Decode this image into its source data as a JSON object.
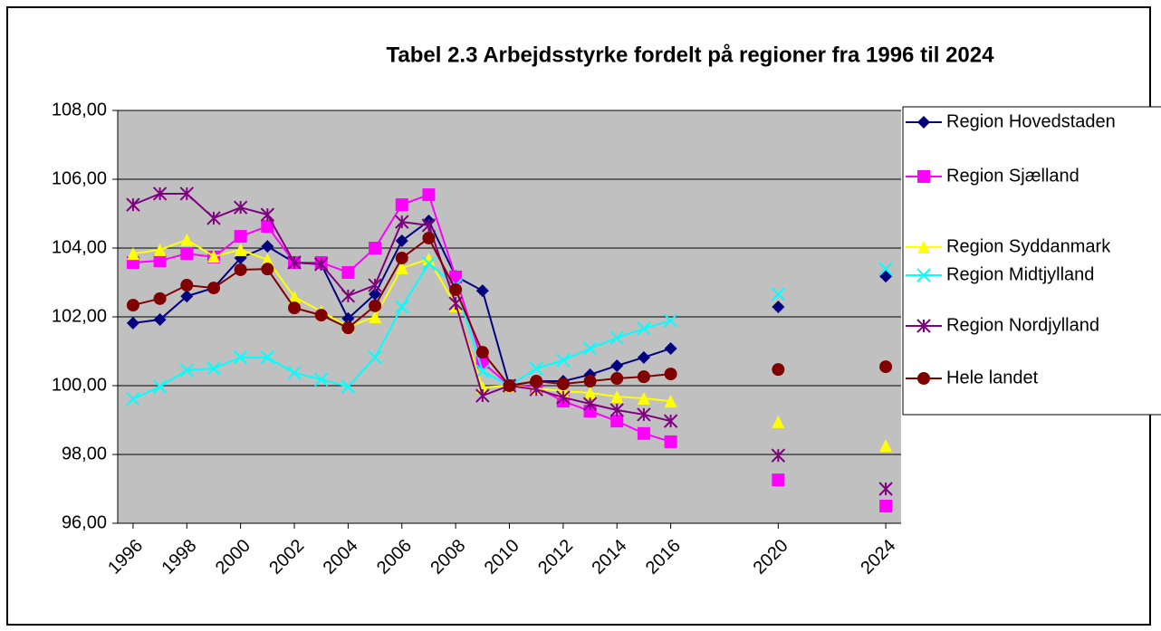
{
  "chart_data": {
    "type": "line",
    "title": "Tabel 2.3 Arbejdsstyrke fordelt på regioner fra 1996 til 2024",
    "x": [
      1996,
      1997,
      1998,
      1999,
      2000,
      2001,
      2002,
      2003,
      2004,
      2005,
      2006,
      2007,
      2008,
      2009,
      2010,
      2011,
      2012,
      2013,
      2014,
      2015,
      2016,
      2020,
      2024
    ],
    "xlim": [
      1995.43,
      2024.57
    ],
    "xticks": [
      1996,
      1998,
      2000,
      2002,
      2004,
      2006,
      2008,
      2010,
      2012,
      2014,
      2016,
      2020,
      2024
    ],
    "ylim": [
      96,
      108
    ],
    "yticks": [
      {
        "value": 96,
        "label": "96,00"
      },
      {
        "value": 98,
        "label": "98,00"
      },
      {
        "value": 100,
        "label": "100,00"
      },
      {
        "value": 102,
        "label": "102,00"
      },
      {
        "value": 104,
        "label": "104,00"
      },
      {
        "value": 106,
        "label": "106,00"
      },
      {
        "value": 108,
        "label": "108,00"
      }
    ],
    "grid": true,
    "legend": "right",
    "series": [
      {
        "name": "Region Hovedstaden",
        "color": "#000080",
        "marker": "diamond",
        "values": [
          101.82,
          101.92,
          102.6,
          102.84,
          103.71,
          104.05,
          103.58,
          103.53,
          101.95,
          102.66,
          104.21,
          104.79,
          103.18,
          102.76,
          100.0,
          100.13,
          100.13,
          100.32,
          100.58,
          100.82,
          101.08,
          102.29,
          103.18
        ]
      },
      {
        "name": "Region Sjælland",
        "color": "#ff00ff",
        "marker": "square",
        "values": [
          103.58,
          103.63,
          103.84,
          103.74,
          104.34,
          104.63,
          103.58,
          103.58,
          103.29,
          104.0,
          105.26,
          105.55,
          103.16,
          100.68,
          100.0,
          99.95,
          99.55,
          99.26,
          98.97,
          98.61,
          98.37,
          97.26,
          96.5
        ]
      },
      {
        "name": "Region Syddanmark",
        "color": "#ffff00",
        "marker": "triangle",
        "values": [
          103.84,
          103.95,
          104.24,
          103.76,
          103.95,
          103.66,
          102.58,
          102.16,
          101.71,
          102.0,
          103.42,
          103.68,
          102.32,
          99.95,
          100.0,
          99.92,
          99.84,
          99.79,
          99.68,
          99.63,
          99.55,
          98.95,
          98.26
        ]
      },
      {
        "name": "Region Midtjylland",
        "color": "#00ffff",
        "marker": "x",
        "values": [
          99.61,
          99.97,
          100.45,
          100.5,
          100.82,
          100.82,
          100.37,
          100.18,
          99.97,
          100.82,
          102.29,
          103.55,
          102.92,
          100.42,
          100.0,
          100.5,
          100.74,
          101.08,
          101.39,
          101.66,
          101.89,
          102.66,
          103.39
        ]
      },
      {
        "name": "Region Nordjylland",
        "color": "#800080",
        "marker": "star",
        "values": [
          105.26,
          105.58,
          105.58,
          104.87,
          105.18,
          104.97,
          103.58,
          103.53,
          102.61,
          102.92,
          104.76,
          104.66,
          102.39,
          99.71,
          100.0,
          99.89,
          99.66,
          99.47,
          99.29,
          99.16,
          98.97,
          97.97,
          97.0
        ]
      },
      {
        "name": "Hele landet",
        "color": "#800000",
        "marker": "circle",
        "values": [
          102.34,
          102.53,
          102.92,
          102.84,
          103.37,
          103.39,
          102.26,
          102.05,
          101.68,
          102.32,
          103.71,
          104.29,
          102.79,
          100.97,
          100.0,
          100.13,
          100.05,
          100.13,
          100.21,
          100.26,
          100.34,
          100.47,
          100.55
        ]
      }
    ]
  }
}
